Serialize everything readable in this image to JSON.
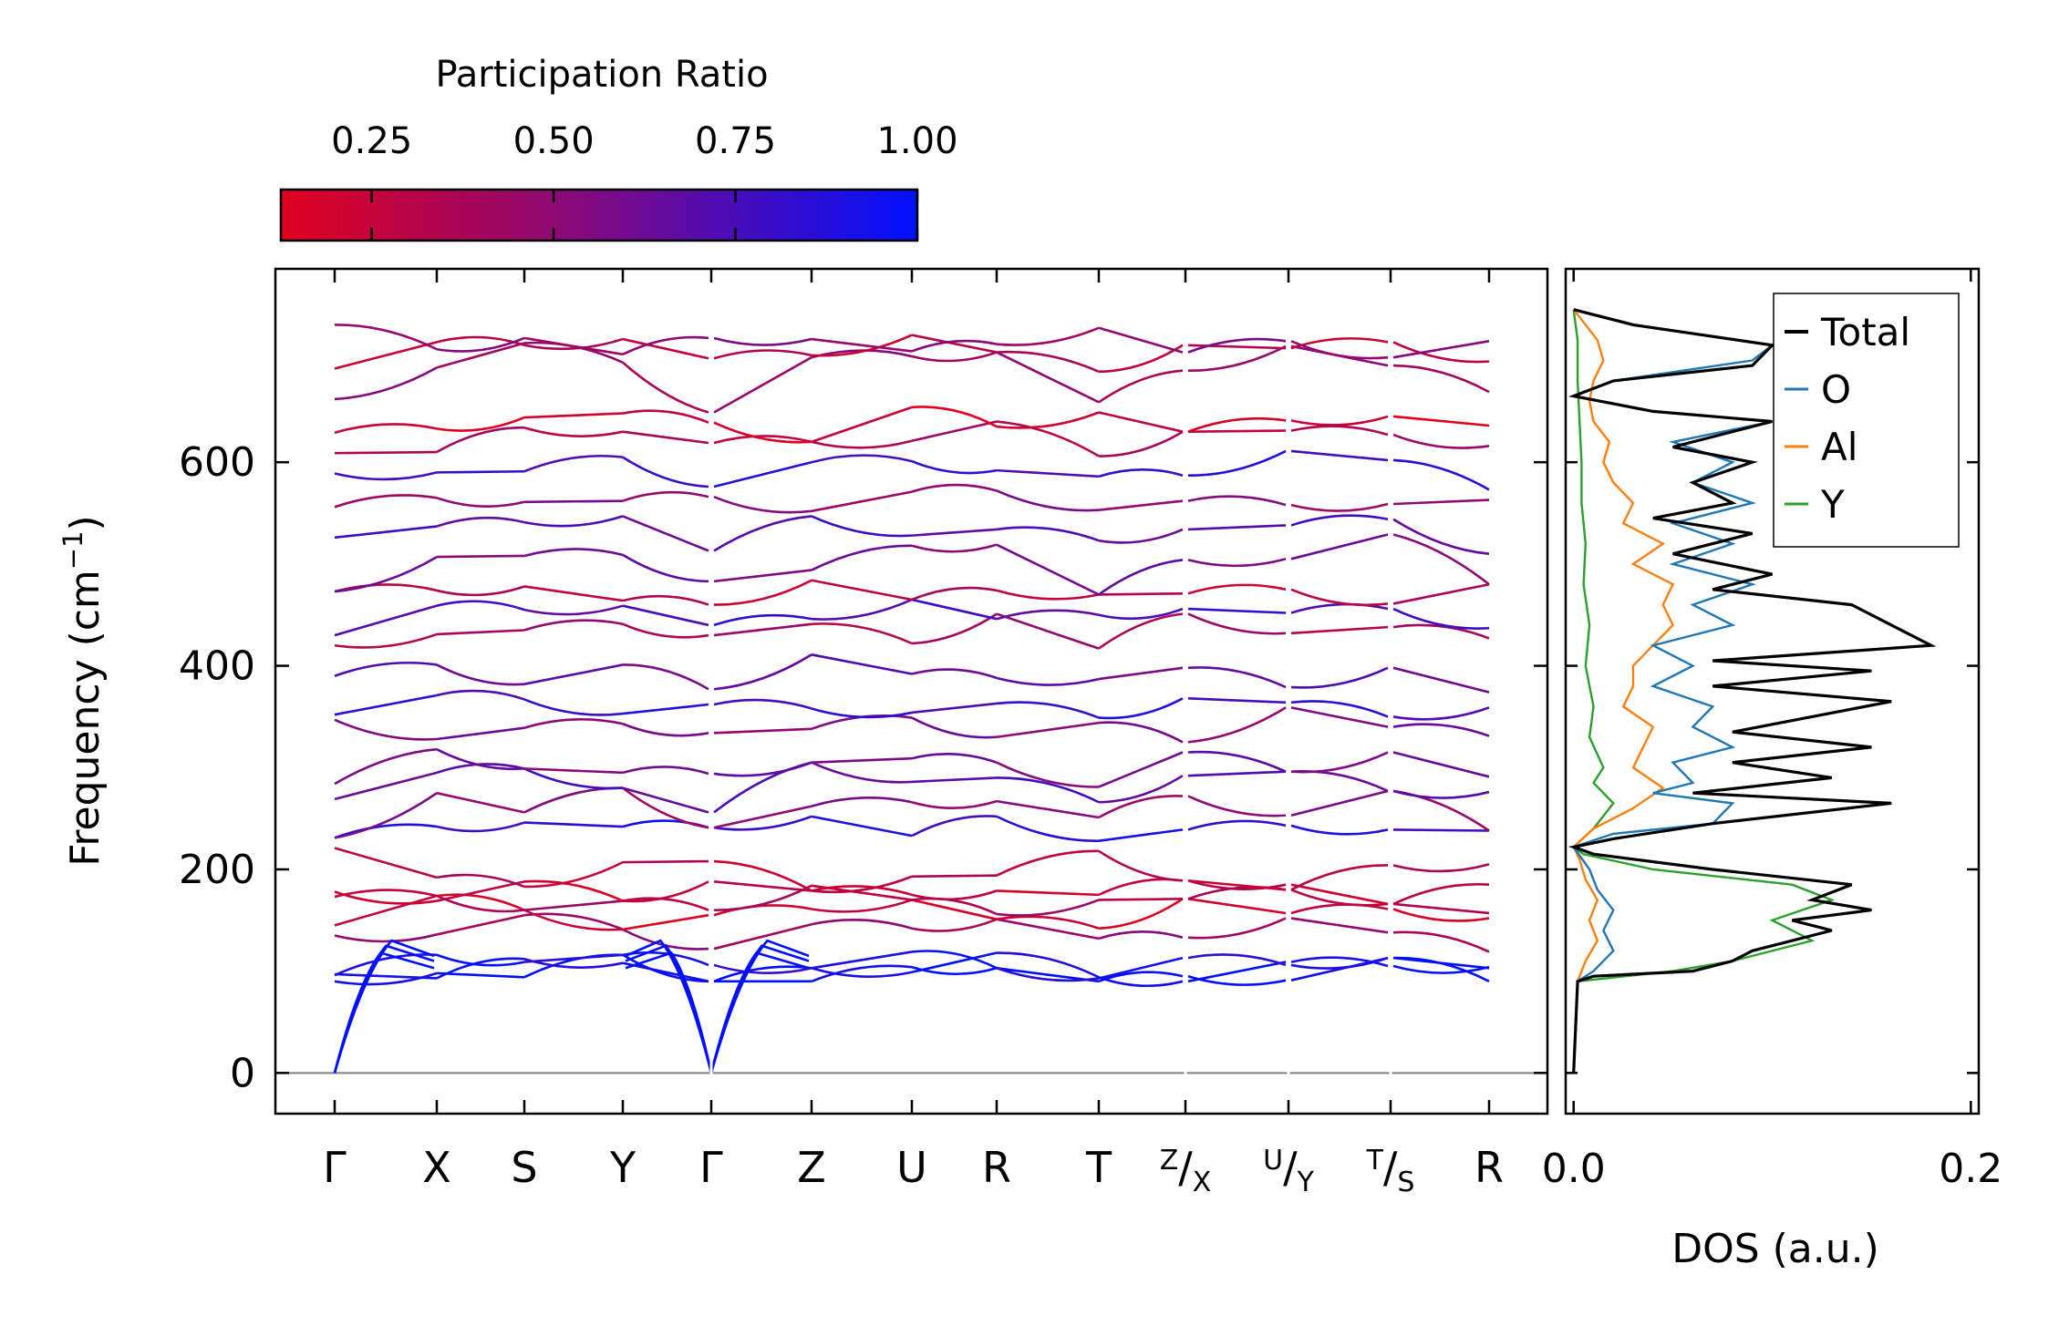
{
  "colorbar": {
    "title": "Participation Ratio",
    "range": [
      0.125,
      1.0
    ],
    "ticks": [
      "0.25",
      "0.50",
      "0.75",
      "1.00"
    ],
    "tick_values": [
      0.25,
      0.5,
      0.75,
      1.0
    ],
    "color_low": "#e0001e",
    "color_mid": "#8a0a78",
    "color_high": "#0010ff"
  },
  "chart_data": [
    {
      "type": "line",
      "panel": "band-structure",
      "xlabel": "",
      "ylabel": "Frequency (cm",
      "ylabel_sup": "−1",
      "ylabel_close": ")",
      "ylim": [
        -40,
        790
      ],
      "yticks": [
        0,
        200,
        400,
        600
      ],
      "high_symmetry_points": [
        {
          "sup": "",
          "main": "Γ",
          "sub": ""
        },
        {
          "sup": "",
          "main": "X",
          "sub": ""
        },
        {
          "sup": "",
          "main": "S",
          "sub": ""
        },
        {
          "sup": "",
          "main": "Y",
          "sub": ""
        },
        {
          "sup": "",
          "main": "Γ",
          "sub": ""
        },
        {
          "sup": "",
          "main": "Z",
          "sub": ""
        },
        {
          "sup": "",
          "main": "U",
          "sub": ""
        },
        {
          "sup": "",
          "main": "R",
          "sub": ""
        },
        {
          "sup": "",
          "main": "T",
          "sub": ""
        },
        {
          "sup": "Z",
          "main": "/",
          "sub": "X"
        },
        {
          "sup": "U",
          "main": "/",
          "sub": "Y"
        },
        {
          "sup": "T",
          "main": "/",
          "sub": "S"
        },
        {
          "sup": "",
          "main": "R",
          "sub": ""
        }
      ],
      "path_breaks_after_segment": [
        3,
        8,
        9,
        10
      ],
      "zero_line": true,
      "acoustic_branches": {
        "gamma_points": [
          0,
          4
        ],
        "end_frequencies": [
          118,
          125,
          130
        ],
        "pr": 1.0
      },
      "band_frequencies_at_points": [
        [
          0,
          95,
          100,
          108
        ],
        [
          95,
          100,
          105,
          110
        ],
        [
          104,
          110,
          112,
          105
        ],
        [
          130,
          140,
          145,
          140
        ],
        [
          150,
          165,
          160,
          150
        ],
        [
          165,
          175,
          170,
          165
        ],
        [
          180,
          180,
          185,
          175
        ],
        [
          210,
          190,
          190,
          200
        ],
        [
          230,
          250,
          240,
          245
        ],
        [
          240,
          270,
          260,
          270
        ],
        [
          265,
          300,
          290,
          280
        ],
        [
          290,
          310,
          300,
          305
        ],
        [
          340,
          330,
          350,
          340
        ],
        [
          355,
          360,
          365,
          360
        ],
        [
          380,
          400,
          390,
          395
        ],
        [
          420,
          440,
          430,
          445
        ],
        [
          440,
          455,
          460,
          450
        ],
        [
          470,
          480,
          470,
          465
        ],
        [
          480,
          500,
          510,
          520
        ],
        [
          520,
          540,
          530,
          545
        ],
        [
          560,
          555,
          560,
          570
        ],
        [
          580,
          590,
          600,
          600
        ],
        [
          610,
          620,
          630,
          635
        ],
        [
          640,
          630,
          650,
          640
        ],
        [
          660,
          700,
          710,
          700
        ],
        [
          700,
          712,
          718,
          710
        ],
        [
          730,
          715,
          712,
          705
        ]
      ],
      "band_pr": [
        1.0,
        0.95,
        0.9,
        0.45,
        0.2,
        0.35,
        0.25,
        0.3,
        0.85,
        0.5,
        0.7,
        0.6,
        0.55,
        0.8,
        0.65,
        0.4,
        0.75,
        0.3,
        0.6,
        0.7,
        0.5,
        0.8,
        0.35,
        0.2,
        0.45,
        0.3,
        0.5
      ]
    },
    {
      "type": "line",
      "panel": "dos",
      "xlabel": "DOS (a.u.)",
      "xlim": [
        -0.004,
        0.204
      ],
      "xticks": [
        0.0,
        0.2
      ],
      "xtick_labels": [
        "0.0",
        "0.2"
      ],
      "ylim": [
        -40,
        790
      ],
      "legend_position": "top-right",
      "series": [
        {
          "name": "Total",
          "color": "#000000",
          "points": [
            [
              0,
              0
            ],
            [
              0.002,
              90
            ],
            [
              0.01,
              95
            ],
            [
              0.06,
              100
            ],
            [
              0.08,
              110
            ],
            [
              0.09,
              120
            ],
            [
              0.13,
              140
            ],
            [
              0.11,
              150
            ],
            [
              0.15,
              160
            ],
            [
              0.12,
              170
            ],
            [
              0.14,
              185
            ],
            [
              0.07,
              200
            ],
            [
              0.01,
              215
            ],
            [
              0,
              222
            ],
            [
              0.02,
              230
            ],
            [
              0.07,
              245
            ],
            [
              0.16,
              265
            ],
            [
              0.06,
              275
            ],
            [
              0.13,
              290
            ],
            [
              0.08,
              305
            ],
            [
              0.15,
              320
            ],
            [
              0.08,
              335
            ],
            [
              0.16,
              365
            ],
            [
              0.07,
              380
            ],
            [
              0.15,
              395
            ],
            [
              0.07,
              405
            ],
            [
              0.18,
              420
            ],
            [
              0.16,
              440
            ],
            [
              0.14,
              460
            ],
            [
              0.07,
              475
            ],
            [
              0.1,
              490
            ],
            [
              0.05,
              510
            ],
            [
              0.09,
              530
            ],
            [
              0.04,
              545
            ],
            [
              0.08,
              560
            ],
            [
              0.06,
              580
            ],
            [
              0.09,
              600
            ],
            [
              0.05,
              615
            ],
            [
              0.1,
              640
            ],
            [
              0.04,
              650
            ],
            [
              0,
              665
            ],
            [
              0.02,
              680
            ],
            [
              0.09,
              695
            ],
            [
              0.1,
              715
            ],
            [
              0.03,
              735
            ],
            [
              0,
              750
            ]
          ]
        },
        {
          "name": "O",
          "color": "#1f77b4",
          "points": [
            [
              0,
              0
            ],
            [
              0.002,
              90
            ],
            [
              0.01,
              100
            ],
            [
              0.02,
              120
            ],
            [
              0.015,
              140
            ],
            [
              0.02,
              160
            ],
            [
              0.012,
              180
            ],
            [
              0.008,
              200
            ],
            [
              0,
              222
            ],
            [
              0.02,
              235
            ],
            [
              0.07,
              245
            ],
            [
              0.08,
              265
            ],
            [
              0.04,
              275
            ],
            [
              0.06,
              285
            ],
            [
              0.05,
              305
            ],
            [
              0.08,
              320
            ],
            [
              0.06,
              340
            ],
            [
              0.07,
              360
            ],
            [
              0.04,
              380
            ],
            [
              0.06,
              400
            ],
            [
              0.04,
              420
            ],
            [
              0.08,
              440
            ],
            [
              0.06,
              460
            ],
            [
              0.09,
              480
            ],
            [
              0.05,
              500
            ],
            [
              0.08,
              520
            ],
            [
              0.05,
              540
            ],
            [
              0.09,
              560
            ],
            [
              0.06,
              580
            ],
            [
              0.08,
              600
            ],
            [
              0.05,
              620
            ],
            [
              0.1,
              640
            ],
            [
              0.04,
              650
            ],
            [
              0,
              665
            ],
            [
              0.02,
              680
            ],
            [
              0.09,
              700
            ],
            [
              0.1,
              715
            ],
            [
              0.03,
              735
            ],
            [
              0,
              750
            ]
          ]
        },
        {
          "name": "Al",
          "color": "#ff7f0e",
          "points": [
            [
              0,
              0
            ],
            [
              0.002,
              90
            ],
            [
              0.006,
              110
            ],
            [
              0.012,
              130
            ],
            [
              0.008,
              150
            ],
            [
              0.012,
              170
            ],
            [
              0.006,
              190
            ],
            [
              0.003,
              210
            ],
            [
              0,
              222
            ],
            [
              0.01,
              240
            ],
            [
              0.03,
              260
            ],
            [
              0.045,
              280
            ],
            [
              0.03,
              300
            ],
            [
              0.035,
              320
            ],
            [
              0.04,
              340
            ],
            [
              0.025,
              360
            ],
            [
              0.03,
              380
            ],
            [
              0.03,
              400
            ],
            [
              0.04,
              420
            ],
            [
              0.05,
              440
            ],
            [
              0.045,
              460
            ],
            [
              0.05,
              480
            ],
            [
              0.03,
              500
            ],
            [
              0.045,
              520
            ],
            [
              0.025,
              540
            ],
            [
              0.03,
              560
            ],
            [
              0.02,
              580
            ],
            [
              0.015,
              600
            ],
            [
              0.018,
              620
            ],
            [
              0.01,
              640
            ],
            [
              0.008,
              660
            ],
            [
              0.01,
              680
            ],
            [
              0.015,
              700
            ],
            [
              0.012,
              720
            ],
            [
              0.004,
              740
            ],
            [
              0,
              750
            ]
          ]
        },
        {
          "name": "Y",
          "color": "#2ca02c",
          "points": [
            [
              0,
              0
            ],
            [
              0.002,
              90
            ],
            [
              0.05,
              100
            ],
            [
              0.08,
              110
            ],
            [
              0.12,
              130
            ],
            [
              0.1,
              150
            ],
            [
              0.13,
              170
            ],
            [
              0.11,
              185
            ],
            [
              0.04,
              200
            ],
            [
              0.005,
              215
            ],
            [
              0,
              222
            ],
            [
              0.01,
              240
            ],
            [
              0.02,
              265
            ],
            [
              0.01,
              285
            ],
            [
              0.015,
              300
            ],
            [
              0.008,
              330
            ],
            [
              0.01,
              360
            ],
            [
              0.006,
              400
            ],
            [
              0.008,
              440
            ],
            [
              0.005,
              480
            ],
            [
              0.006,
              520
            ],
            [
              0.004,
              560
            ],
            [
              0.004,
              600
            ],
            [
              0.003,
              640
            ],
            [
              0.002,
              680
            ],
            [
              0.002,
              720
            ],
            [
              0,
              750
            ]
          ]
        }
      ]
    }
  ]
}
